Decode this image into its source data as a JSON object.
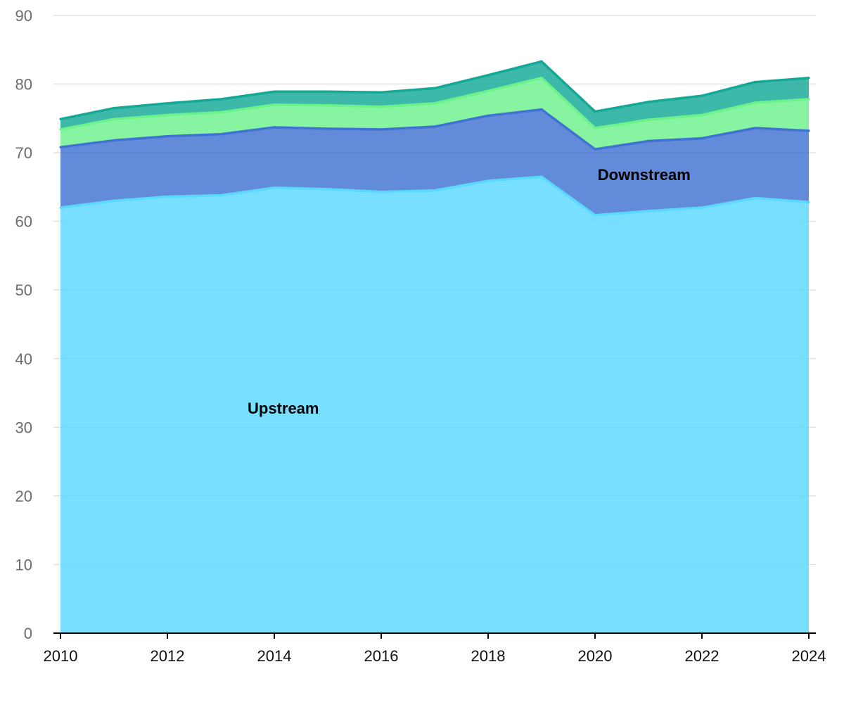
{
  "chart_data": {
    "type": "area",
    "stacked": true,
    "x": [
      2010,
      2011,
      2012,
      2013,
      2014,
      2015,
      2016,
      2017,
      2018,
      2019,
      2020,
      2021,
      2022,
      2023,
      2024
    ],
    "x_ticks": [
      "2010",
      "2012",
      "2014",
      "2016",
      "2018",
      "2020",
      "2022",
      "2024"
    ],
    "y_ticks": [
      "0",
      "10",
      "20",
      "30",
      "40",
      "50",
      "60",
      "70",
      "80",
      "90"
    ],
    "ylim": [
      0,
      90
    ],
    "grid": true,
    "legend": "none",
    "title": "",
    "xlabel": "",
    "ylabel": "",
    "series": [
      {
        "name": "Upstream",
        "color": "#5ad8ff",
        "values": [
          62.0,
          63.0,
          63.6,
          63.8,
          64.9,
          64.7,
          64.3,
          64.5,
          65.9,
          66.5,
          60.9,
          61.5,
          62.0,
          63.4,
          62.8
        ]
      },
      {
        "name": "Downstream",
        "color": "#3f72d1",
        "values": [
          8.8,
          8.8,
          8.8,
          8.9,
          8.8,
          8.8,
          9.1,
          9.3,
          9.5,
          9.8,
          9.6,
          10.2,
          10.1,
          10.2,
          10.4
        ]
      },
      {
        "name": "",
        "color": "#6cf28c",
        "values": [
          2.6,
          3.1,
          3.1,
          3.2,
          3.3,
          3.4,
          3.3,
          3.4,
          3.6,
          4.6,
          3.1,
          3.1,
          3.4,
          3.7,
          4.6
        ]
      },
      {
        "name": "",
        "color": "#14a896",
        "values": [
          1.5,
          1.6,
          1.7,
          1.9,
          1.9,
          2.0,
          2.1,
          2.2,
          2.3,
          2.4,
          2.4,
          2.6,
          2.8,
          3.0,
          3.1
        ]
      }
    ],
    "labels": [
      {
        "text": "Upstream",
        "series": 0,
        "x": 2013.5,
        "y": 32
      },
      {
        "text": "Downstream",
        "series": 1,
        "x": 2020.05,
        "y": 66
      }
    ]
  }
}
